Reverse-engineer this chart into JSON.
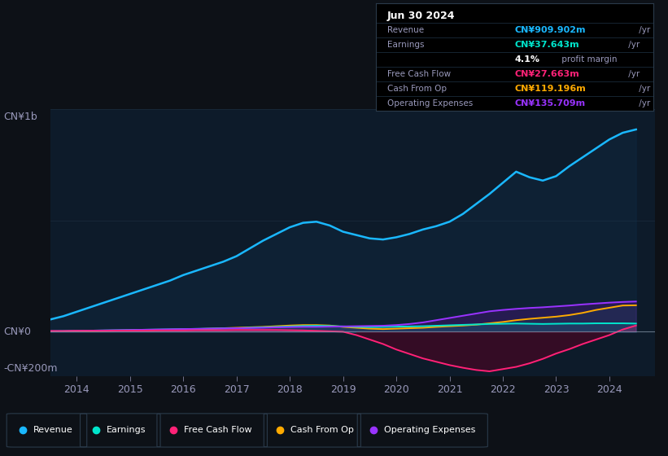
{
  "bg_color": "#0d1117",
  "chart_bg": "#0d1b2a",
  "colors": {
    "revenue": "#1ab8ff",
    "earnings": "#00e5cc",
    "free_cash_flow": "#ff2277",
    "cash_from_op": "#ffaa00",
    "operating_expenses": "#9933ff"
  },
  "ylabel_top": "CN¥1b",
  "ylabel_zero": "CN¥0",
  "ylabel_bottom": "-CN¥200m",
  "xticklabels": [
    "2014",
    "2015",
    "2016",
    "2017",
    "2018",
    "2019",
    "2020",
    "2021",
    "2022",
    "2023",
    "2024"
  ],
  "xtick_positions": [
    2014,
    2015,
    2016,
    2017,
    2018,
    2019,
    2020,
    2021,
    2022,
    2023,
    2024
  ],
  "info_box": {
    "date": "Jun 30 2024",
    "rows": [
      {
        "label": "Revenue",
        "val": "CN¥909.902m",
        "suffix": " /yr",
        "color": "#1ab8ff",
        "sub": null
      },
      {
        "label": "Earnings",
        "val": "CN¥37.643m",
        "suffix": " /yr",
        "color": "#00e5cc",
        "sub": "4.1% profit margin"
      },
      {
        "label": "Free Cash Flow",
        "val": "CN¥27.663m",
        "suffix": " /yr",
        "color": "#ff2277",
        "sub": null
      },
      {
        "label": "Cash From Op",
        "val": "CN¥119.196m",
        "suffix": " /yr",
        "color": "#ffaa00",
        "sub": null
      },
      {
        "label": "Operating Expenses",
        "val": "CN¥135.709m",
        "suffix": " /yr",
        "color": "#9933ff",
        "sub": null
      }
    ]
  },
  "legend": [
    {
      "label": "Revenue",
      "color": "#1ab8ff"
    },
    {
      "label": "Earnings",
      "color": "#00e5cc"
    },
    {
      "label": "Free Cash Flow",
      "color": "#ff2277"
    },
    {
      "label": "Cash From Op",
      "color": "#ffaa00"
    },
    {
      "label": "Operating Expenses",
      "color": "#9933ff"
    }
  ],
  "xlim": [
    2013.5,
    2024.85
  ],
  "ylim": [
    -200,
    1000
  ],
  "x": [
    2013.5,
    2013.75,
    2014.0,
    2014.25,
    2014.5,
    2014.75,
    2015.0,
    2015.25,
    2015.5,
    2015.75,
    2016.0,
    2016.25,
    2016.5,
    2016.75,
    2017.0,
    2017.25,
    2017.5,
    2017.75,
    2018.0,
    2018.25,
    2018.5,
    2018.75,
    2019.0,
    2019.25,
    2019.5,
    2019.75,
    2020.0,
    2020.25,
    2020.5,
    2020.75,
    2021.0,
    2021.25,
    2021.5,
    2021.75,
    2022.0,
    2022.25,
    2022.5,
    2022.75,
    2023.0,
    2023.25,
    2023.5,
    2023.75,
    2024.0,
    2024.25,
    2024.5
  ],
  "revenue": [
    55,
    70,
    90,
    110,
    130,
    150,
    170,
    190,
    210,
    230,
    255,
    275,
    295,
    315,
    340,
    375,
    410,
    440,
    470,
    490,
    495,
    478,
    450,
    435,
    420,
    415,
    425,
    440,
    460,
    475,
    495,
    530,
    575,
    620,
    670,
    720,
    695,
    680,
    700,
    745,
    785,
    825,
    865,
    895,
    910
  ],
  "earnings": [
    2,
    3,
    4,
    5,
    6,
    7,
    8,
    9,
    10,
    11,
    12,
    13,
    14,
    15,
    16,
    18,
    20,
    22,
    24,
    26,
    27,
    26,
    24,
    22,
    21,
    22,
    23,
    24,
    25,
    27,
    29,
    31,
    33,
    35,
    36,
    37,
    36,
    35,
    36,
    37,
    37,
    38,
    38,
    38,
    37
  ],
  "free_cash_flow": [
    3,
    3,
    4,
    4,
    4,
    5,
    5,
    5,
    6,
    6,
    6,
    7,
    7,
    7,
    8,
    8,
    8,
    8,
    7,
    6,
    4,
    2,
    0,
    -15,
    -35,
    -55,
    -80,
    -100,
    -120,
    -135,
    -150,
    -162,
    -172,
    -178,
    -168,
    -158,
    -142,
    -122,
    -98,
    -78,
    -55,
    -35,
    -15,
    10,
    28
  ],
  "cash_from_op": [
    2,
    2,
    3,
    3,
    4,
    5,
    6,
    7,
    8,
    9,
    10,
    12,
    14,
    16,
    18,
    20,
    22,
    25,
    28,
    30,
    30,
    28,
    22,
    18,
    14,
    12,
    14,
    16,
    18,
    22,
    25,
    28,
    32,
    38,
    44,
    52,
    58,
    63,
    68,
    75,
    85,
    98,
    108,
    118,
    119
  ],
  "operating_expenses": [
    3,
    3,
    4,
    5,
    6,
    7,
    8,
    9,
    10,
    11,
    12,
    13,
    14,
    15,
    16,
    17,
    18,
    20,
    21,
    22,
    22,
    23,
    24,
    25,
    26,
    27,
    30,
    35,
    42,
    52,
    62,
    72,
    82,
    92,
    98,
    103,
    107,
    110,
    114,
    118,
    123,
    127,
    131,
    134,
    136
  ]
}
